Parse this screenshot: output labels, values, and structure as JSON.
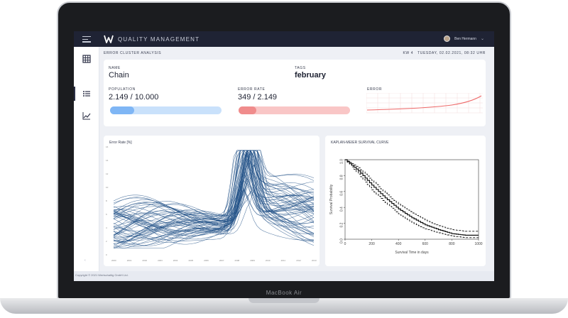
{
  "device": {
    "label": "MacBook Air"
  },
  "topbar": {
    "brand": "QUALITY MANAGEMENT",
    "user_name": "Ben Hermann"
  },
  "header": {
    "title": "ERROR CLUSTER ANALYSIS",
    "week": "KW 4",
    "datetime": "TUESDAY, 02.02.2021, 08:32 UHR"
  },
  "info": {
    "name_label": "NAME",
    "name_value": "Chain",
    "tags_label": "TAGS",
    "tags_value": "february",
    "population_label": "POPULATION",
    "population_value": "2.149 / 10.000",
    "population_fraction": 0.2149,
    "error_rate_label": "ERROR RATE",
    "error_rate_value": "349 / 2.149",
    "error_rate_fraction": 0.162,
    "error_label": "ERROR"
  },
  "colors": {
    "population_fill": "#7fb6f5",
    "population_track": "#c9e1fb",
    "error_fill": "#f08c8c",
    "error_track": "#f9c6c6",
    "sparkline": "#ee6a6a",
    "lines": "#1f4f86"
  },
  "sidebar": {
    "icons": [
      "table-icon",
      "list-icon",
      "chart-icon"
    ],
    "footer_glyph": "‹"
  },
  "footer": {
    "copyright": "Copyright © 2021 Wertschaltig GmbH Ltd."
  },
  "chart_data": [
    {
      "type": "line",
      "title": "Error Rate [%]",
      "x": [
        "2000",
        "2001",
        "2002",
        "2003",
        "2004",
        "2005",
        "2006",
        "2007",
        "2008",
        "2009",
        "2010",
        "2011",
        "2012",
        "2013"
      ],
      "ylim": [
        0,
        16
      ],
      "yticks": [
        "16",
        "14",
        "12",
        "10",
        "8",
        "6",
        "4",
        "2",
        "0"
      ],
      "series_count": 60
    },
    {
      "type": "line",
      "title": "KAPLAN-MEIER SURVIVAL CURVE",
      "xlabel": "Survival Time in days",
      "ylabel": "Survival Probability",
      "xlim": [
        0,
        1000
      ],
      "ylim": [
        0,
        1.0
      ],
      "xticks": [
        0,
        200,
        400,
        600,
        800,
        1000
      ],
      "yticks": [
        0.0,
        0.2,
        0.4,
        0.6,
        0.8,
        1.0
      ],
      "series": [
        {
          "name": "",
          "x": [
            0,
            100,
            200,
            300,
            400,
            500,
            600,
            700,
            800,
            900,
            1000
          ],
          "values": [
            1.0,
            0.86,
            0.68,
            0.52,
            0.38,
            0.27,
            0.18,
            0.12,
            0.07,
            0.05,
            0.05
          ]
        },
        {
          "name": "",
          "x": [
            0,
            100,
            200,
            300,
            400,
            500,
            600,
            700,
            800,
            900,
            1000
          ],
          "values": [
            1.0,
            0.9,
            0.74,
            0.58,
            0.44,
            0.33,
            0.24,
            0.17,
            0.12,
            0.1,
            0.1
          ]
        },
        {
          "name": "",
          "x": [
            0,
            100,
            200,
            300,
            400,
            500,
            600,
            700,
            800,
            900,
            1000
          ],
          "values": [
            1.0,
            0.82,
            0.62,
            0.46,
            0.32,
            0.21,
            0.13,
            0.08,
            0.04,
            0.02,
            0.02
          ]
        }
      ]
    }
  ]
}
